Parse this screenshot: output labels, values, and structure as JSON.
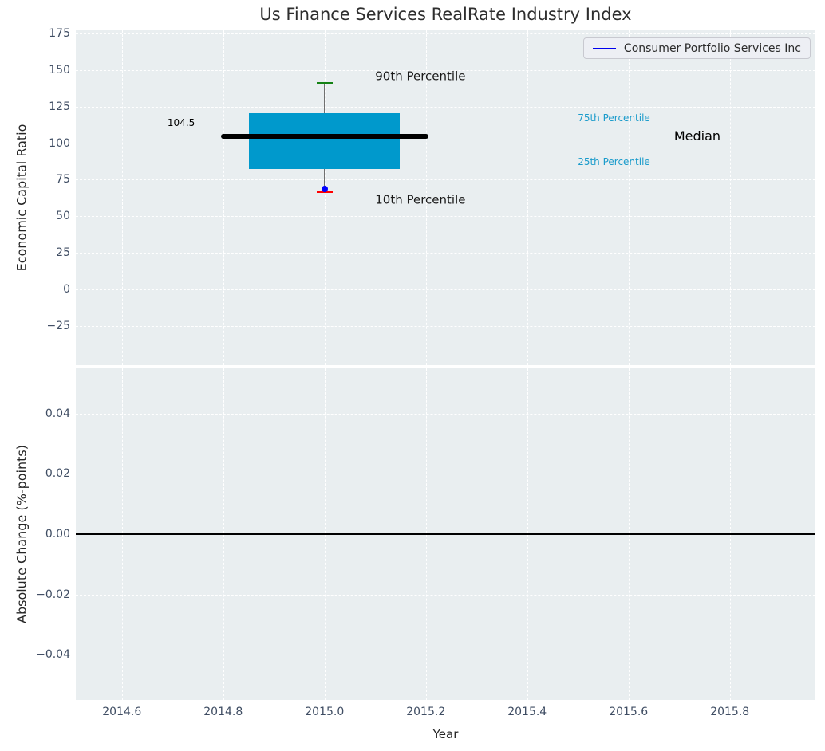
{
  "figure": {
    "title": "Us Finance Services RealRate Industry Index",
    "legend": {
      "label": "Consumer Portfolio Services Inc"
    }
  },
  "colors": {
    "plot_bg": "#E9EEF0",
    "grid": "#FFFFFF",
    "tick_label": "#3F4D63",
    "axis_label": "#262626",
    "title": "#2E2E2E",
    "box_fill": "#0099CC",
    "median_line": "#000000",
    "whisker": "#707070",
    "p90_cap": "#148214",
    "p10_cap": "#FF0000",
    "company_point": "#0000FF",
    "percentile_label": "#1A9BCB",
    "legend_bg": "#EDEFF4",
    "legend_border": "#C8C9D0",
    "legend_line": "#0000EE",
    "zero_line": "#000000"
  },
  "chart_data": [
    {
      "type": "box",
      "title": "Us Finance Services RealRate Industry Index",
      "xlabel": "Year",
      "ylabel": "Economic Capital Ratio",
      "grid": "white dashed, on",
      "legend_position": "upper right",
      "xlim": [
        2014.509,
        2015.969
      ],
      "ylim": [
        -51.5,
        177
      ],
      "xticks": [
        2014.6,
        2014.8,
        2015.0,
        2015.2,
        2015.4,
        2015.6,
        2015.8
      ],
      "xtick_labels": [
        "2014.6",
        "2014.8",
        "2015.0",
        "2015.2",
        "2015.4",
        "2015.6",
        "2015.8"
      ],
      "yticks": [
        175,
        150,
        125,
        100,
        75,
        50,
        25,
        0,
        -25
      ],
      "ytick_labels": [
        "175",
        "150",
        "125",
        "100",
        "75",
        "50",
        "25",
        "0",
        "−25"
      ],
      "box": {
        "x": 2015.0,
        "p90": 141,
        "p75": 120.5,
        "median": 104.5,
        "p25": 82.5,
        "p10": 66.5,
        "box_halfwidth": 0.149,
        "median_halfwidth": 0.2,
        "cap_halfwidth": 0.016
      },
      "company_point": {
        "name": "Consumer Portfolio Services Inc",
        "x": 2015.0,
        "y": 69
      },
      "annotations": [
        {
          "text": "90th Percentile",
          "x": 2015.1,
          "y": 145.5,
          "color": "#1A1A1A",
          "size": 15,
          "name": "annotation-90th-percentile"
        },
        {
          "text": "10th Percentile",
          "x": 2015.1,
          "y": 61,
          "color": "#1A1A1A",
          "size": 15,
          "name": "annotation-10th-percentile"
        },
        {
          "text": "Median",
          "x": 2015.69,
          "y": 104.5,
          "color": "#000000",
          "size": 16,
          "name": "annotation-median"
        },
        {
          "text": "75th Percentile",
          "x": 2015.5,
          "y": 117,
          "color": "#1A9BCB",
          "size": 12,
          "name": "annotation-75th-percentile"
        },
        {
          "text": "25th Percentile",
          "x": 2015.5,
          "y": 87,
          "color": "#1A9BCB",
          "size": 12,
          "name": "annotation-25th-percentile"
        },
        {
          "text": "104.5",
          "x": 2014.69,
          "y": 114,
          "color": "#000000",
          "size": 12,
          "name": "annotation-median-value"
        }
      ]
    },
    {
      "type": "line",
      "title": "",
      "xlabel": "Year",
      "ylabel": "Absolute Change (%-points)",
      "grid": "white dashed, on",
      "xlim": [
        2014.509,
        2015.969
      ],
      "ylim": [
        -0.055,
        0.055
      ],
      "yticks": [
        0.04,
        0.02,
        0.0,
        -0.02,
        -0.04
      ],
      "ytick_labels": [
        "0.04",
        "0.02",
        "0.00",
        "−0.02",
        "−0.04"
      ],
      "zero_line": 0.0,
      "series": []
    }
  ]
}
